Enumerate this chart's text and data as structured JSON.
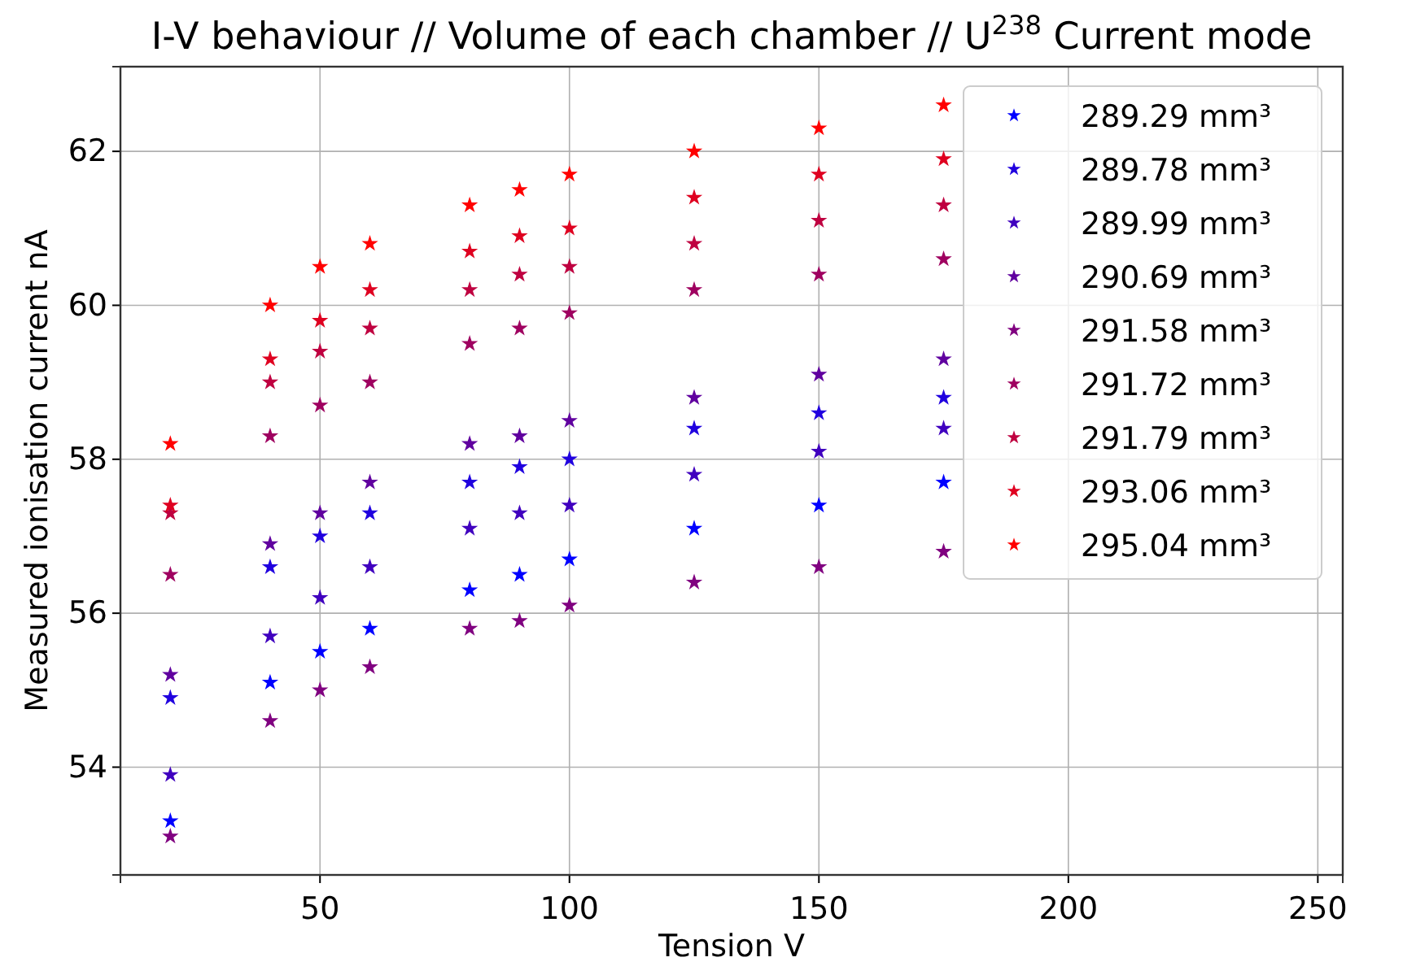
{
  "chart_data": {
    "type": "scatter",
    "title": "I-V behaviour // Volume of each chamber // U$^{238}$ Current mode",
    "xlabel": "Tension V",
    "ylabel": "Measured ionisation current nA",
    "x": [
      20,
      40,
      50,
      60,
      80,
      90,
      100,
      125,
      150,
      175
    ],
    "series": [
      {
        "name": "289.29 mm³",
        "color": "#0000ff",
        "values": [
          53.3,
          55.1,
          55.5,
          55.8,
          56.3,
          56.5,
          56.7,
          57.1,
          57.4,
          57.7
        ]
      },
      {
        "name": "289.78 mm³",
        "color": "#2000df",
        "values": [
          54.9,
          56.6,
          57.0,
          57.3,
          57.7,
          57.9,
          58.0,
          58.4,
          58.6,
          58.8
        ]
      },
      {
        "name": "289.99 mm³",
        "color": "#4000bf",
        "values": [
          53.9,
          55.7,
          56.2,
          56.6,
          57.1,
          57.3,
          57.4,
          57.8,
          58.1,
          58.4
        ]
      },
      {
        "name": "290.69 mm³",
        "color": "#60009f",
        "values": [
          55.2,
          56.9,
          57.3,
          57.7,
          58.2,
          58.3,
          58.5,
          58.8,
          59.1,
          59.3
        ]
      },
      {
        "name": "291.58 mm³",
        "color": "#800080",
        "values": [
          53.1,
          54.6,
          55.0,
          55.3,
          55.8,
          55.9,
          56.1,
          56.4,
          56.6,
          56.8
        ]
      },
      {
        "name": "291.72 mm³",
        "color": "#9f0060",
        "values": [
          56.5,
          58.3,
          58.7,
          59.0,
          59.5,
          59.7,
          59.9,
          60.2,
          60.4,
          60.6
        ]
      },
      {
        "name": "291.79 mm³",
        "color": "#bf0040",
        "values": [
          57.3,
          59.0,
          59.4,
          59.7,
          60.2,
          60.4,
          60.5,
          60.8,
          61.1,
          61.3
        ]
      },
      {
        "name": "293.06 mm³",
        "color": "#df0020",
        "values": [
          57.4,
          59.3,
          59.8,
          60.2,
          60.7,
          60.9,
          61.0,
          61.4,
          61.7,
          61.9
        ]
      },
      {
        "name": "295.04 mm³",
        "color": "#ff0000",
        "values": [
          58.2,
          60.0,
          60.5,
          60.8,
          61.3,
          61.5,
          61.7,
          62.0,
          62.3,
          62.6
        ]
      }
    ],
    "xlim": [
      10,
      255
    ],
    "ylim": [
      52.6,
      63.1
    ],
    "xticks": [
      50,
      100,
      150,
      200,
      250
    ],
    "yticks": [
      54,
      56,
      58,
      60,
      62
    ],
    "grid": true,
    "legend": "top right",
    "marker": "star"
  }
}
